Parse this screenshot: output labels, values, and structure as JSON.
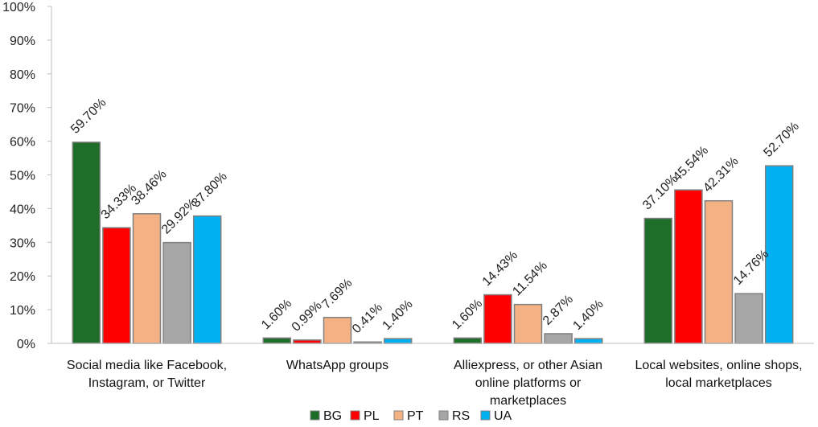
{
  "chart_data": {
    "type": "bar",
    "categories": [
      [
        "Social media like Facebook,",
        "Instagram, or Twitter"
      ],
      [
        "WhatsApp groups"
      ],
      [
        "Alliexpress, or other Asian",
        "online platforms or",
        "marketplaces"
      ],
      [
        "Local websites, online shops,",
        "local marketplaces"
      ]
    ],
    "series": [
      {
        "name": "BG",
        "color": "#1e6e2a",
        "values": [
          59.7,
          1.6,
          1.6,
          37.1
        ],
        "labels": [
          "59.70%",
          "1.60%",
          "1.60%",
          "37.10%"
        ]
      },
      {
        "name": "PL",
        "color": "#ff0000",
        "values": [
          34.33,
          0.99,
          14.43,
          45.54
        ],
        "labels": [
          "34.33%",
          "0.99%",
          "14.43%",
          "45.54%"
        ]
      },
      {
        "name": "PT",
        "color": "#f4b183",
        "values": [
          38.46,
          7.69,
          11.54,
          42.31
        ],
        "labels": [
          "38.46%",
          "7.69%",
          "11.54%",
          "42.31%"
        ]
      },
      {
        "name": "RS",
        "color": "#a6a6a6",
        "values": [
          29.92,
          0.41,
          2.87,
          14.76
        ],
        "labels": [
          "29.92%",
          "0.41%",
          "2.87%",
          "14.76%"
        ]
      },
      {
        "name": "UA",
        "color": "#00b0f0",
        "values": [
          37.8,
          1.4,
          1.4,
          52.7
        ],
        "labels": [
          "37.80%",
          "1.40%",
          "1.40%",
          "52.70%"
        ]
      }
    ],
    "ylim": [
      0,
      100
    ],
    "yticks": [
      "0%",
      "10%",
      "20%",
      "30%",
      "40%",
      "50%",
      "60%",
      "70%",
      "80%",
      "90%",
      "100%"
    ],
    "grid": false,
    "legend_position": "bottom"
  }
}
